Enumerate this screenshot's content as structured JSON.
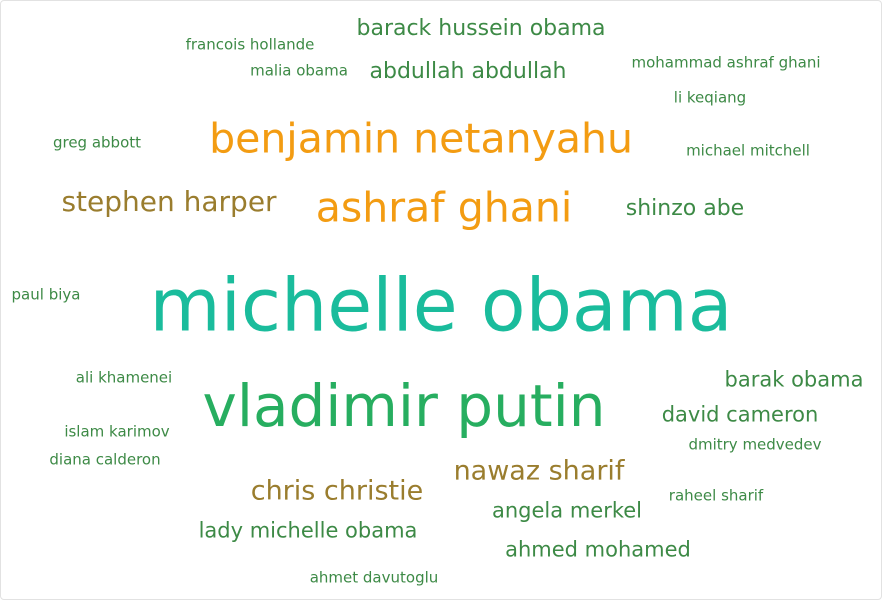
{
  "cloud": {
    "colors": {
      "teal": "#1abc9c",
      "green": "#27ae60",
      "orange": "#f39c12",
      "olive": "#9a7d2e",
      "dark_green": "#3d8a46"
    },
    "words": [
      "michelle obama",
      "vladimir putin",
      "benjamin netanyahu",
      "ashraf ghani",
      "stephen harper",
      "nawaz sharif",
      "chris christie",
      "barack hussein obama",
      "abdullah abdullah",
      "shinzo abe",
      "barak obama",
      "david cameron",
      "lady michelle obama",
      "angela merkel",
      "ahmed mohamed",
      "francois hollande",
      "malia obama",
      "mohammad ashraf ghani",
      "li keqiang",
      "greg abbott",
      "michael mitchell",
      "paul biya",
      "ali khamenei",
      "islam karimov",
      "diana calderon",
      "dmitry medvedev",
      "raheel sharif",
      "ahmet davutoglu"
    ]
  }
}
